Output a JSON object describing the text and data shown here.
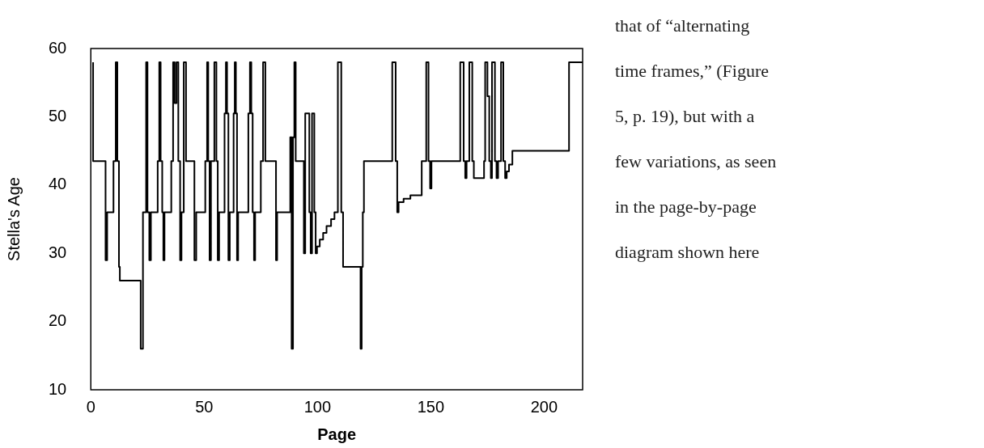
{
  "chart_data": {
    "type": "step",
    "xlabel": "Page",
    "ylabel": "Stella's Age",
    "xlim": [
      0,
      217
    ],
    "xticks": [
      0,
      50,
      100,
      150,
      200
    ],
    "ylim": [
      10,
      60
    ],
    "yticks": [
      10,
      20,
      30,
      40,
      50,
      60
    ],
    "grid": false,
    "legend": false,
    "marker": "none",
    "annotations": [
      "that of “alternating time frames,” (Figure 5, p. 19), but with a few variations, as seen in the page-by-page diagram shown here"
    ],
    "series": [
      {
        "color": "#000000",
        "x": [
          1,
          6.5,
          7.2,
          10,
          11,
          11.7,
          12.4,
          12.8,
          22,
          23,
          24.4,
          25,
          25.8,
          26.5,
          29.5,
          30.2,
          30.8,
          31.5,
          32,
          32.5,
          35.5,
          36.3,
          37,
          37.8,
          38.6,
          39.4,
          40,
          41,
          42,
          45.7,
          46.5,
          50.5,
          51.3,
          51.8,
          52.4,
          53,
          54.5,
          55.4,
          56,
          56.6,
          59,
          59.6,
          60.1,
          60.7,
          61.3,
          63,
          63.5,
          64,
          64.5,
          65,
          69.5,
          70.2,
          70.8,
          71.4,
          72,
          72.5,
          75,
          76,
          77,
          81.7,
          82.2,
          88,
          88.6,
          89.2,
          89.8,
          90.4,
          94,
          94.6,
          96.4,
          97,
          97.6,
          98.6,
          99.2,
          99.8,
          101,
          102.5,
          104,
          106,
          107.5,
          109,
          110.5,
          111.3,
          119,
          119.5,
          120,
          120.5,
          133,
          134.5,
          135.2,
          135.8,
          138,
          141,
          146,
          148,
          149,
          149.7,
          150.3,
          163,
          164.5,
          165.2,
          165.8,
          167,
          168.3,
          169,
          169.7,
          173.5,
          174,
          175,
          175.8,
          176.5,
          177,
          178.3,
          179,
          179.7,
          181,
          182,
          182.8,
          183.5,
          184.5,
          186,
          211,
          212,
          217
        ],
        "values": [
          58,
          43.5,
          29,
          36,
          43.5,
          58,
          43.5,
          28,
          26,
          16,
          36,
          58,
          36,
          29,
          36,
          43.5,
          58,
          43.5,
          36,
          29,
          36,
          43.5,
          58,
          52,
          58,
          43.5,
          29,
          36,
          58,
          43.5,
          29,
          36,
          43.5,
          58,
          43.5,
          29,
          43.5,
          58,
          43.5,
          29,
          36,
          50.5,
          58,
          50.5,
          29,
          36,
          50.5,
          58,
          50.5,
          29,
          36,
          50.5,
          58,
          50.5,
          36,
          29,
          36,
          43.5,
          58,
          43.5,
          29,
          36,
          47,
          16,
          47,
          58,
          43.5,
          30,
          50.5,
          36,
          30,
          50.5,
          36,
          30,
          31,
          32,
          33,
          34,
          35,
          36,
          58,
          36,
          28,
          16,
          28,
          36,
          43.5,
          58,
          43.5,
          36,
          37.5,
          38,
          38.5,
          43.5,
          58,
          43.5,
          39.5,
          43.5,
          58,
          43.5,
          41,
          43.5,
          58,
          43.5,
          41,
          41,
          43.5,
          58,
          53,
          43.5,
          41,
          58,
          43.5,
          41,
          43.5,
          58,
          43.5,
          41,
          42,
          43,
          45,
          58,
          58
        ]
      }
    ]
  }
}
